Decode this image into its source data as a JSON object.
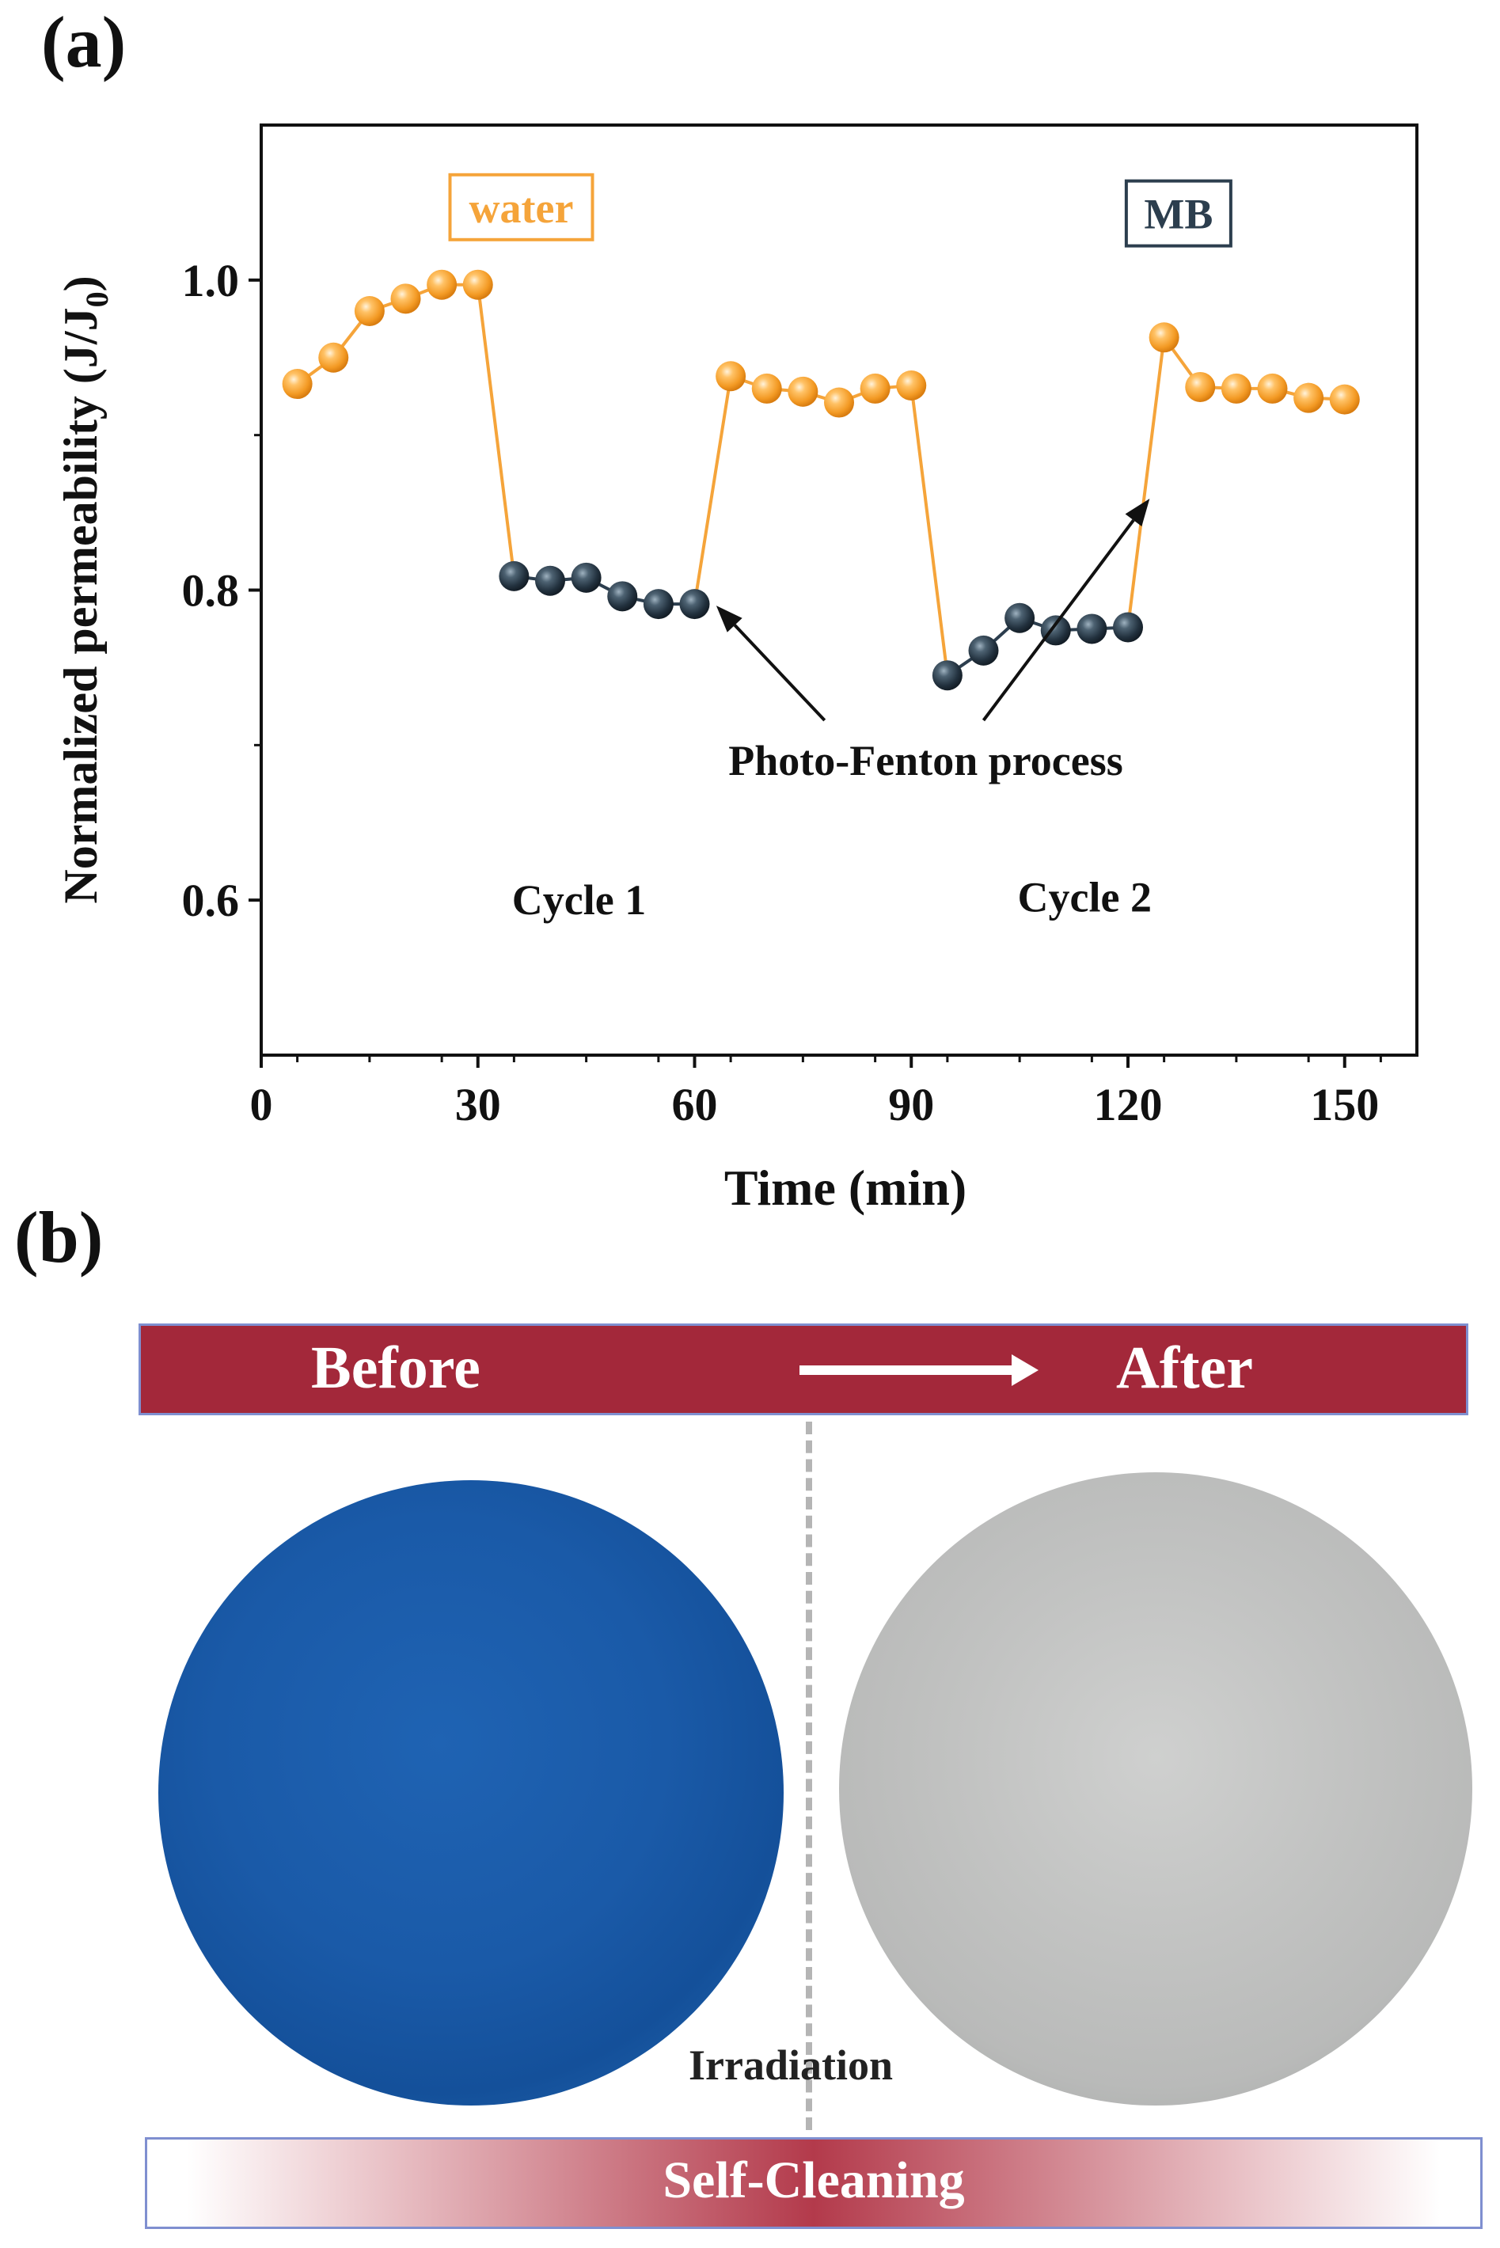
{
  "panel_a_label": "(a)",
  "panel_b_label": "(b)",
  "chart_data": {
    "type": "scatter",
    "xlabel": "Time (min)",
    "ylabel": "Normalized permeability (J/J",
    "ylabel_sub": "0",
    "ylabel_close": ")",
    "xlim": [
      0,
      160
    ],
    "ylim": [
      0.5,
      1.1
    ],
    "xticks": [
      0,
      30,
      60,
      90,
      120,
      150
    ],
    "yticks": [
      0.6,
      0.8,
      1.0
    ],
    "ytick_labels": [
      "0.6",
      "0.8",
      "1.0"
    ],
    "grid": false,
    "series": [
      {
        "name": "water",
        "color": "#f5a43a",
        "segments": [
          {
            "x": [
              5,
              10,
              15,
              20,
              25,
              30
            ],
            "y": [
              0.933,
              0.95,
              0.98,
              0.988,
              0.997,
              0.997
            ]
          },
          {
            "x": [
              65,
              70,
              75,
              80,
              85,
              90
            ],
            "y": [
              0.938,
              0.93,
              0.928,
              0.921,
              0.93,
              0.932
            ]
          },
          {
            "x": [
              125,
              130,
              135,
              140,
              145,
              150
            ],
            "y": [
              0.963,
              0.931,
              0.93,
              0.93,
              0.924,
              0.923
            ]
          }
        ]
      },
      {
        "name": "MB",
        "color": "#2c3e4e",
        "segments": [
          {
            "x": [
              35,
              40,
              45,
              50,
              55,
              60
            ],
            "y": [
              0.809,
              0.806,
              0.808,
              0.796,
              0.791,
              0.791
            ]
          },
          {
            "x": [
              95,
              100,
              105,
              110,
              115,
              120
            ],
            "y": [
              0.745,
              0.761,
              0.782,
              0.774,
              0.775,
              0.776
            ]
          }
        ]
      }
    ],
    "transitions": [
      {
        "from": [
          30,
          0.997
        ],
        "to": [
          35,
          0.809
        ],
        "color": "#f5a43a"
      },
      {
        "from": [
          60,
          0.791
        ],
        "to": [
          65,
          0.938
        ],
        "color": "#f5a43a"
      },
      {
        "from": [
          90,
          0.932
        ],
        "to": [
          95,
          0.745
        ],
        "color": "#f5a43a"
      },
      {
        "from": [
          120,
          0.776
        ],
        "to": [
          125,
          0.963
        ],
        "color": "#f5a43a"
      }
    ],
    "legend": [
      {
        "text": "water",
        "color": "#f5a43a",
        "x": 36,
        "y": 1.047
      },
      {
        "text": "MB",
        "color": "#2c3e4e",
        "x": 127,
        "y": 1.043
      }
    ],
    "annotations": [
      {
        "text": "Photo-Fenton process",
        "x": 92,
        "y": 0.69
      },
      {
        "text": "Cycle 1",
        "x": 44,
        "y": 0.6
      },
      {
        "text": "Cycle 2",
        "x": 114,
        "y": 0.602
      }
    ],
    "arrows": [
      {
        "from": [
          78,
          0.716
        ],
        "to": [
          63,
          0.79
        ]
      },
      {
        "from": [
          100,
          0.716
        ],
        "to": [
          123,
          0.859
        ]
      }
    ]
  },
  "banner": {
    "before": "Before",
    "after": "After"
  },
  "irradiation": "Irradiation",
  "self_cleaning": "Self-Cleaning"
}
